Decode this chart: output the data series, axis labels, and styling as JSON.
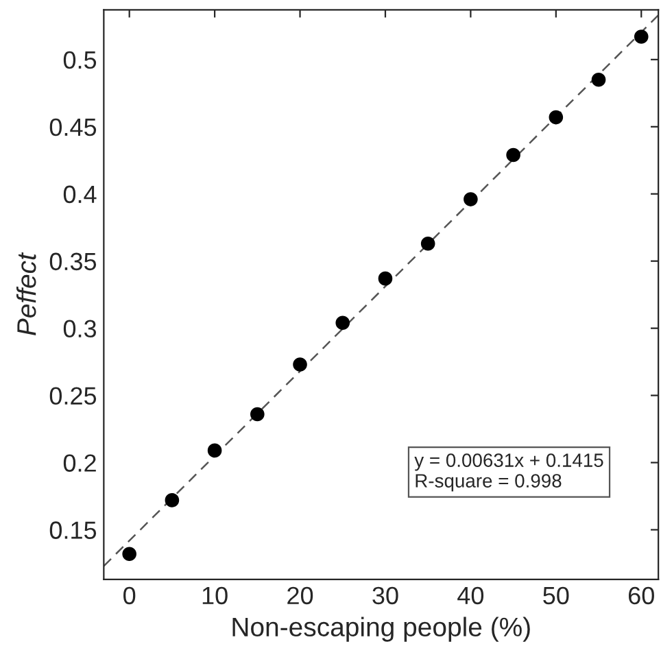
{
  "chart_data": {
    "type": "scatter",
    "xlabel": "Non-escaping people (%)",
    "ylabel": "Peffect",
    "x": [
      0,
      5,
      10,
      15,
      20,
      25,
      30,
      35,
      40,
      45,
      50,
      55,
      60
    ],
    "series": [
      {
        "color": "#000000",
        "marker": "circle",
        "values": [
          0.132,
          0.172,
          0.209,
          0.236,
          0.273,
          0.304,
          0.337,
          0.363,
          0.396,
          0.429,
          0.457,
          0.485,
          0.517
        ]
      },
      {
        "type": "line",
        "color": "#555555",
        "line_style": "dashed",
        "marker": "none",
        "x": [
          -3,
          62
        ],
        "values": [
          0.123,
          0.533
        ]
      }
    ],
    "xlim": [
      -3,
      62
    ],
    "ylim": [
      0.113,
      0.537
    ],
    "xticks": [
      0,
      10,
      20,
      30,
      40,
      50,
      60
    ],
    "yticks": [
      0.15,
      0.2,
      0.25,
      0.3,
      0.35,
      0.4,
      0.45,
      0.5
    ],
    "annotations": [
      "y = 0.00631x + 0.1415",
      "R-square = 0.998"
    ],
    "grid": false,
    "legend": false
  }
}
